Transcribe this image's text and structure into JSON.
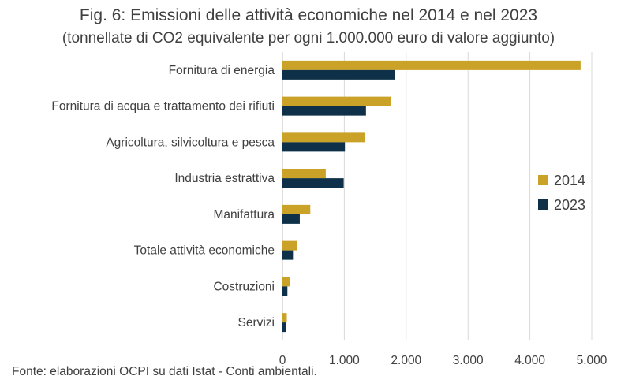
{
  "header": {
    "title": "Fig. 6: Emissioni delle attività economiche nel 2014 e nel 2023",
    "subtitle": "(tonnellate di CO2 equivalente per ogni 1.000.000 euro di valore aggiunto)"
  },
  "footnote": "Fonte: elaborazioni OCPI su dati Istat - Conti ambientali.",
  "chart_data": {
    "type": "bar",
    "orientation": "horizontal",
    "title": "Fig. 6: Emissioni delle attività economiche nel 2014 e nel 2023",
    "subtitle": "(tonnellate di CO2 equivalente per ogni 1.000.000 euro di valore aggiunto)",
    "categories": [
      "Fornitura di energia",
      "Fornitura di acqua e trattamento dei rifiuti",
      "Agricoltura, silvicoltura e pesca",
      "Industria estrattiva",
      "Manifattura",
      "Totale attività economiche",
      "Costruzioni",
      "Servizi"
    ],
    "series": [
      {
        "name": "2014",
        "color": "#C9A227",
        "values": [
          4820,
          1760,
          1340,
          700,
          450,
          240,
          120,
          70
        ]
      },
      {
        "name": "2023",
        "color": "#0E3048",
        "values": [
          1820,
          1350,
          1010,
          990,
          280,
          170,
          80,
          55
        ]
      }
    ],
    "xlim": [
      0,
      5000
    ],
    "xticks": [
      0,
      1000,
      2000,
      3000,
      4000,
      5000
    ],
    "xtick_labels": [
      "0",
      "1.000",
      "2.000",
      "3.000",
      "4.000",
      "5.000"
    ],
    "grid": true,
    "legend_position": "right"
  }
}
